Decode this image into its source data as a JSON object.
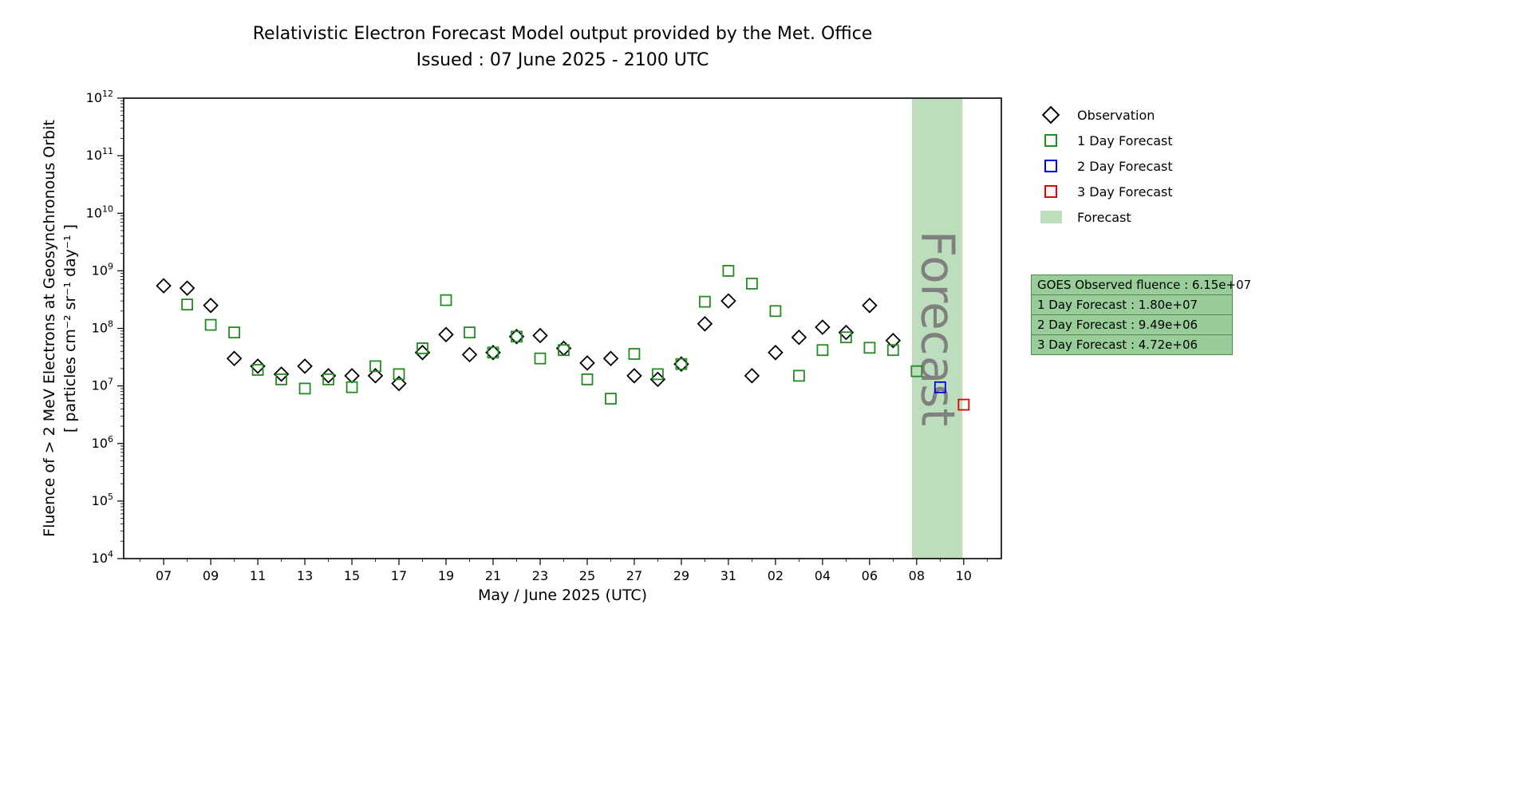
{
  "chart_data": {
    "type": "scatter",
    "title": "Relativistic Electron Forecast Model output provided by the Met. Office",
    "subtitle": "Issued : 07 June 2025 - 2100 UTC",
    "xlabel": "May / June 2025 (UTC)",
    "ylabel_line1": "Fluence of > 2 MeV Electrons at Geosynchronous Orbit",
    "ylabel_line2": "[ particles cm⁻² sr⁻¹ day⁻¹ ]",
    "y_scale": "log",
    "ylim": [
      10000.0,
      1000000000000.0
    ],
    "ylim_exponents": [
      4,
      12
    ],
    "xlim_days": [
      -1.7,
      35.6
    ],
    "x_unit": "days from 07 May 2025",
    "x_ticks": [
      {
        "day": 0,
        "label": "07"
      },
      {
        "day": 2,
        "label": "09"
      },
      {
        "day": 4,
        "label": "11"
      },
      {
        "day": 6,
        "label": "13"
      },
      {
        "day": 8,
        "label": "15"
      },
      {
        "day": 10,
        "label": "17"
      },
      {
        "day": 12,
        "label": "19"
      },
      {
        "day": 14,
        "label": "21"
      },
      {
        "day": 16,
        "label": "23"
      },
      {
        "day": 18,
        "label": "25"
      },
      {
        "day": 20,
        "label": "27"
      },
      {
        "day": 22,
        "label": "29"
      },
      {
        "day": 24,
        "label": "31"
      },
      {
        "day": 26,
        "label": "02"
      },
      {
        "day": 28,
        "label": "04"
      },
      {
        "day": 30,
        "label": "06"
      },
      {
        "day": 32,
        "label": "08"
      },
      {
        "day": 34,
        "label": "10"
      }
    ],
    "grid": false,
    "legend_position": "outside-right",
    "forecast_band": {
      "start_day": 31.8,
      "end_day": 33.95,
      "color": "#bcdebc",
      "label": "Forecast",
      "label_color": "#808080"
    },
    "series": [
      {
        "name": "Observation",
        "marker": "diamond",
        "color": "#000000",
        "points": [
          [
            0,
            550000000.0
          ],
          [
            1,
            500000000.0
          ],
          [
            2,
            250000000.0
          ],
          [
            3,
            30000000.0
          ],
          [
            4,
            22000000.0
          ],
          [
            5,
            16000000.0
          ],
          [
            6,
            22000000.0
          ],
          [
            7,
            15000000.0
          ],
          [
            8,
            15000000.0
          ],
          [
            9,
            15000000.0
          ],
          [
            10,
            11000000.0
          ],
          [
            11,
            38000000.0
          ],
          [
            12,
            78000000.0
          ],
          [
            13,
            35000000.0
          ],
          [
            14,
            38000000.0
          ],
          [
            15,
            72000000.0
          ],
          [
            16,
            75000000.0
          ],
          [
            17,
            45000000.0
          ],
          [
            18,
            25000000.0
          ],
          [
            19,
            30000000.0
          ],
          [
            20,
            15000000.0
          ],
          [
            21,
            13000000.0
          ],
          [
            22,
            24000000.0
          ],
          [
            23,
            120000000.0
          ],
          [
            24,
            300000000.0
          ],
          [
            25,
            15000000.0
          ],
          [
            26,
            38000000.0
          ],
          [
            27,
            70000000.0
          ],
          [
            28,
            105000000.0
          ],
          [
            29,
            85000000.0
          ],
          [
            30,
            250000000.0
          ],
          [
            31,
            61500000.0
          ]
        ]
      },
      {
        "name": "1 Day Forecast",
        "marker": "square",
        "color": "#228b22",
        "points": [
          [
            1,
            260000000.0
          ],
          [
            2,
            115000000.0
          ],
          [
            3,
            85000000.0
          ],
          [
            4,
            19000000.0
          ],
          [
            5,
            13000000.0
          ],
          [
            6,
            9000000.0
          ],
          [
            7,
            13000000.0
          ],
          [
            8,
            9500000.0
          ],
          [
            9,
            22000000.0
          ],
          [
            10,
            16000000.0
          ],
          [
            11,
            45000000.0
          ],
          [
            12,
            310000000.0
          ],
          [
            13,
            85000000.0
          ],
          [
            14,
            38000000.0
          ],
          [
            15,
            72000000.0
          ],
          [
            16,
            30000000.0
          ],
          [
            17,
            42000000.0
          ],
          [
            18,
            13000000.0
          ],
          [
            19,
            6000000.0
          ],
          [
            20,
            36000000.0
          ],
          [
            21,
            16000000.0
          ],
          [
            22,
            24000000.0
          ],
          [
            23,
            290000000.0
          ],
          [
            24,
            1000000000.0
          ],
          [
            25,
            600000000.0
          ],
          [
            26,
            200000000.0
          ],
          [
            27,
            15000000.0
          ],
          [
            28,
            42000000.0
          ],
          [
            29,
            70000000.0
          ],
          [
            30,
            46000000.0
          ],
          [
            31,
            42000000.0
          ],
          [
            32,
            18000000.0
          ]
        ]
      },
      {
        "name": "2 Day Forecast",
        "marker": "square",
        "color": "#0000dd",
        "points": [
          [
            33,
            9490000.0
          ]
        ]
      },
      {
        "name": "3 Day Forecast",
        "marker": "square",
        "color": "#e60000",
        "points": [
          [
            34,
            4720000.0
          ]
        ]
      }
    ]
  },
  "legend": {
    "items": [
      {
        "label": "Observation",
        "marker": "diamond",
        "color": "#000000"
      },
      {
        "label": "1 Day Forecast",
        "marker": "square",
        "color": "#228b22"
      },
      {
        "label": "2 Day Forecast",
        "marker": "square",
        "color": "#0000dd"
      },
      {
        "label": "3 Day Forecast",
        "marker": "square",
        "color": "#e60000"
      },
      {
        "label": "Forecast",
        "marker": "band",
        "color": "#bcdebc"
      }
    ]
  },
  "info_box": {
    "background": "#98cc98",
    "border": "#4c8a4c",
    "lines": [
      "GOES Observed fluence : 6.15e+07",
      "1 Day Forecast : 1.80e+07",
      "2 Day Forecast : 9.49e+06",
      "3 Day Forecast : 4.72e+06"
    ]
  }
}
